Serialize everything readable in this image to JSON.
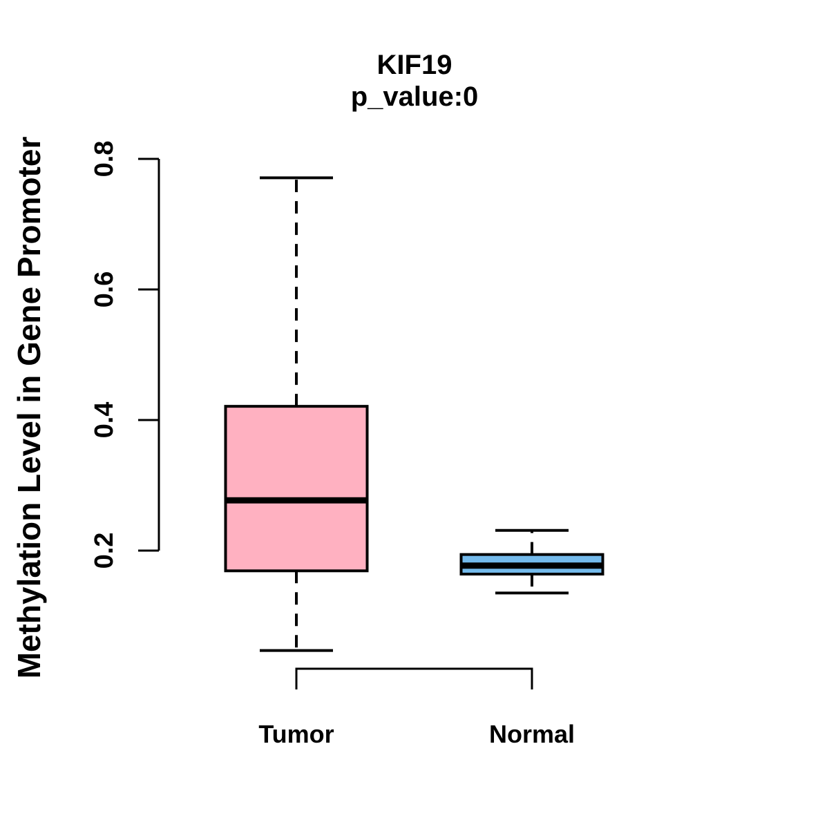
{
  "title": "KIF19",
  "subtitle": "p_value:0",
  "ylabel": "Methylation Level in Gene Promoter",
  "colors": {
    "tumor_box_fill": "#FFB1C1",
    "normal_box_fill": "#74BAEB",
    "line_color": "#000000",
    "background": "#FFFFFF"
  },
  "chart_data": {
    "type": "boxplot",
    "title": "KIF19",
    "subtitle": "p_value:0",
    "ylabel": "Methylation Level in Gene Promoter",
    "xlabel": "",
    "grid": false,
    "legend": false,
    "y_axis": {
      "ticks": [
        0.2,
        0.4,
        0.6,
        0.8
      ],
      "tick_labels": [
        "0.2",
        "0.4",
        "0.6",
        "0.8"
      ],
      "axis_range": [
        0.2,
        0.8
      ]
    },
    "groups": [
      {
        "label": "Tumor",
        "color": "#FFB1C1",
        "whisker_low": 0.047,
        "q1": 0.169,
        "median": 0.277,
        "q3": 0.421,
        "whisker_high": 0.771
      },
      {
        "label": "Normal",
        "color": "#74BAEB",
        "whisker_low": 0.135,
        "q1": 0.164,
        "median": 0.177,
        "q3": 0.194,
        "whisker_high": 0.231
      }
    ],
    "annotations": {
      "bottom_bracket_connects": [
        "Tumor",
        "Normal"
      ]
    }
  }
}
